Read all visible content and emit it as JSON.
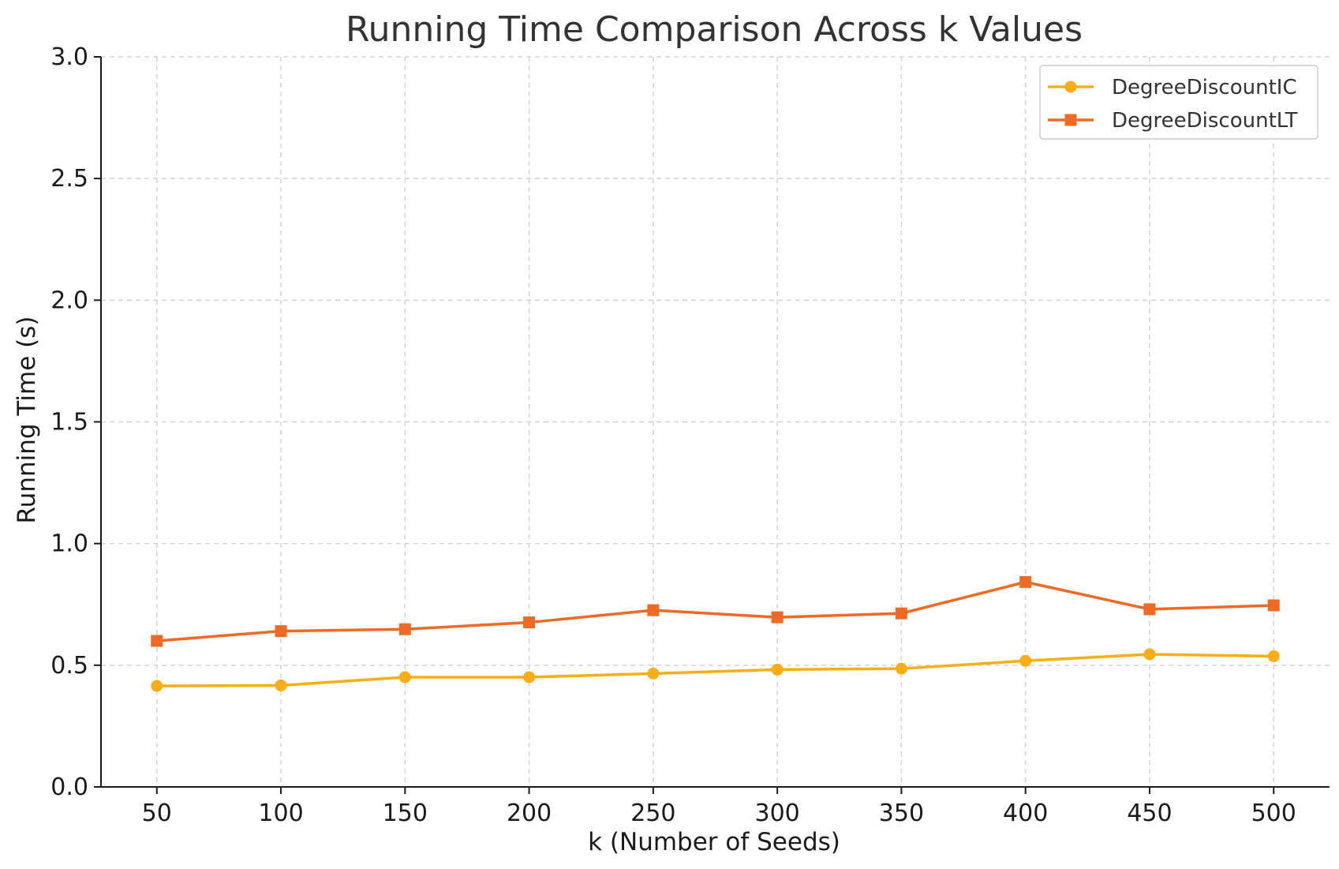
{
  "chart_data": {
    "type": "line",
    "title": "Running Time Comparison Across k Values",
    "xlabel": "k (Number of Seeds)",
    "ylabel": "Running Time (s)",
    "x": [
      50,
      100,
      150,
      200,
      250,
      300,
      350,
      400,
      450,
      500
    ],
    "x_ticks": [
      "50",
      "100",
      "150",
      "200",
      "250",
      "300",
      "350",
      "400",
      "450",
      "500"
    ],
    "y_ticks": [
      "0.0",
      "0.5",
      "1.0",
      "1.5",
      "2.0",
      "2.5",
      "3.0"
    ],
    "ylim": [
      0,
      3
    ],
    "xlim": [
      27.5,
      522.5
    ],
    "grid": true,
    "legend_position": "top-right",
    "series": [
      {
        "name": "DegreeDiscountIC",
        "color": "#f9ad17",
        "marker": "circle",
        "values": [
          0.415,
          0.417,
          0.451,
          0.451,
          0.466,
          0.482,
          0.486,
          0.518,
          0.545,
          0.537
        ]
      },
      {
        "name": "DegreeDiscountLT",
        "color": "#ee6a25",
        "marker": "square",
        "values": [
          0.6,
          0.64,
          0.648,
          0.676,
          0.726,
          0.697,
          0.713,
          0.842,
          0.73,
          0.746
        ]
      }
    ]
  }
}
